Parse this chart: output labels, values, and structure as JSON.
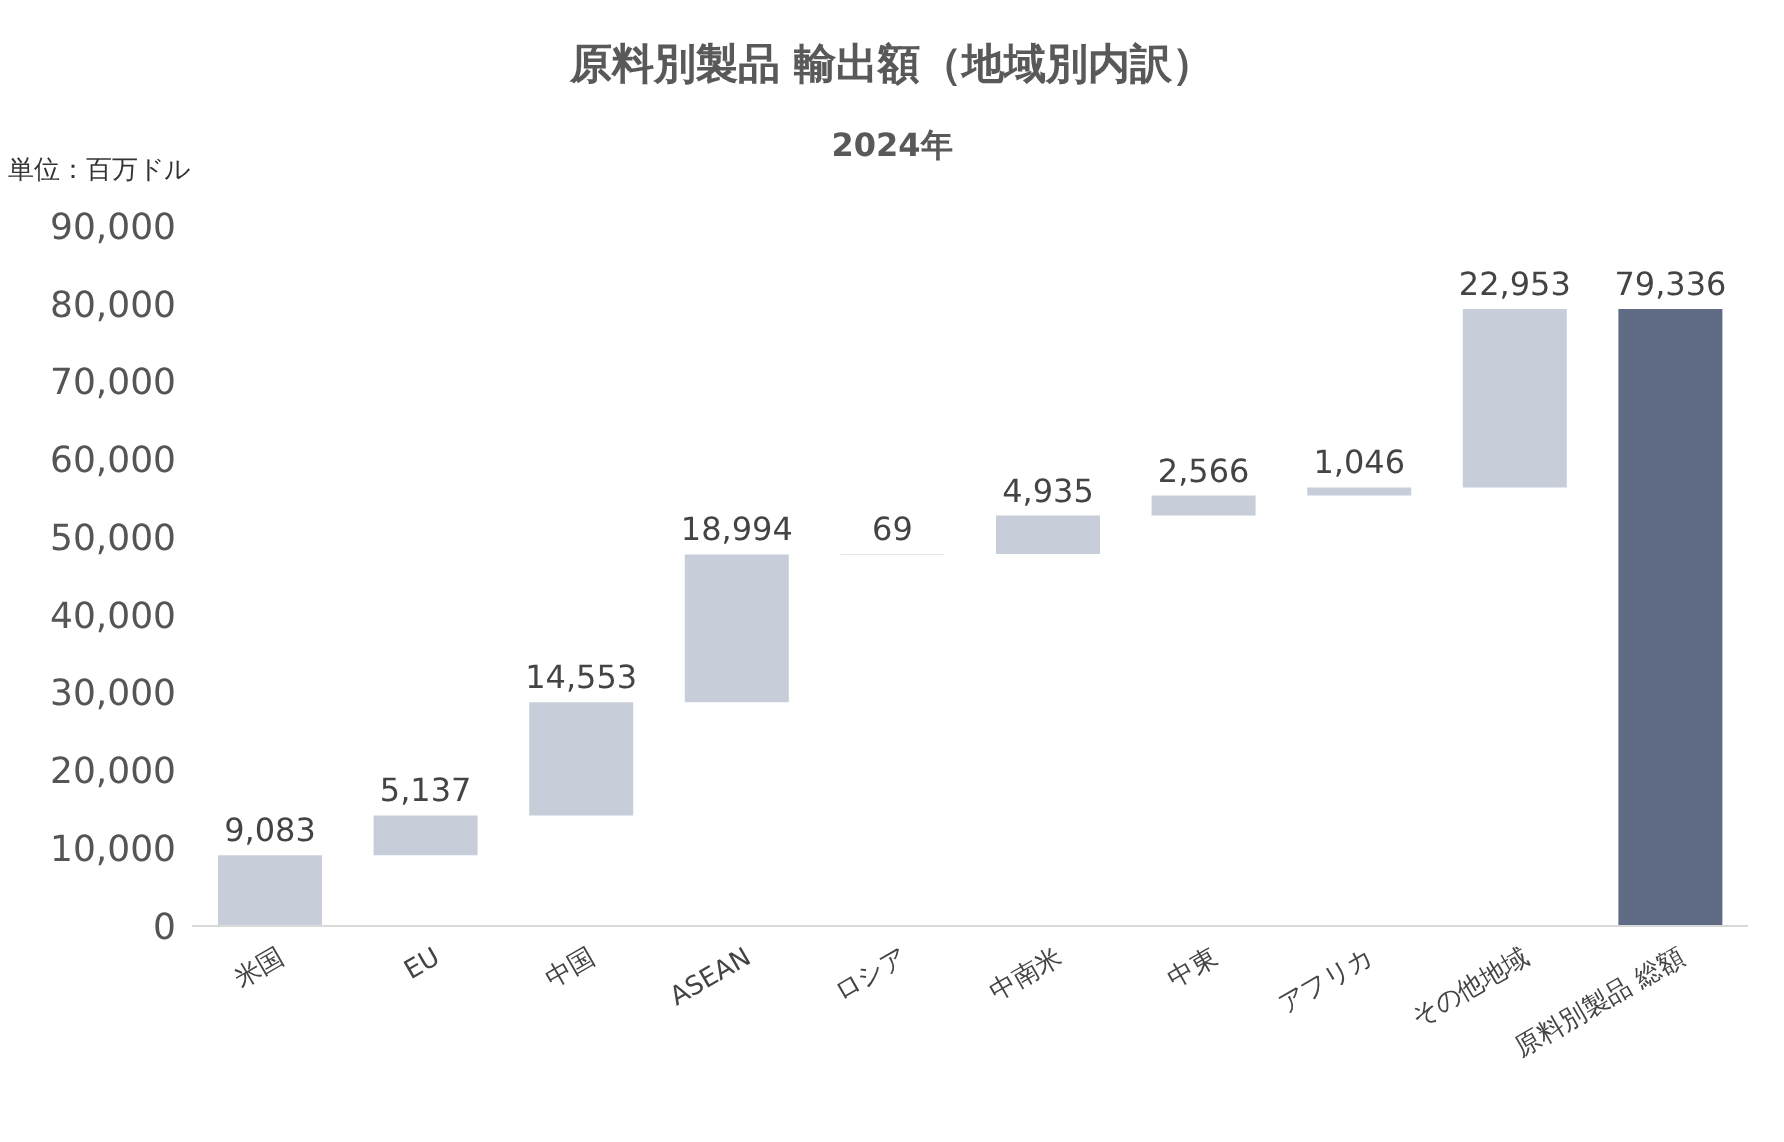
{
  "chart_data": {
    "type": "bar",
    "title": "原料別製品 輸出額（地域別内訳）",
    "subtitle": "2024年",
    "annotations": [
      "単位：百万ドル"
    ],
    "categories": [
      "米国",
      "EU",
      "中国",
      "ASEAN",
      "ロシア",
      "中南米",
      "中東",
      "アフリカ",
      "その他地域",
      "原料別製品 総額"
    ],
    "values": [
      9083,
      5137,
      14553,
      18994,
      69,
      4935,
      2566,
      1046,
      22953,
      79336
    ],
    "base": [
      0,
      9083,
      14220,
      28773,
      47767,
      47836,
      52771,
      55337,
      56383,
      0
    ],
    "colors": [
      "#c8ced9",
      "#c8ced9",
      "#c8ced9",
      "#c8ced9",
      "#c8ced9",
      "#c8ced9",
      "#c8ced9",
      "#c8ced9",
      "#c8ced9",
      "#5f6b85"
    ],
    "value_labels": [
      "9,083",
      "5,137",
      "14,553",
      "18,994",
      "69",
      "4,935",
      "2,566",
      "1,046",
      "22,953",
      "79,336"
    ],
    "ylim": [
      0,
      90000
    ],
    "yticks": [
      {
        "value": 0,
        "label": "0"
      },
      {
        "value": 10000,
        "label": "10,000"
      },
      {
        "value": 20000,
        "label": "20,000"
      },
      {
        "value": 30000,
        "label": "30,000"
      },
      {
        "value": 40000,
        "label": "40,000"
      },
      {
        "value": 50000,
        "label": "50,000"
      },
      {
        "value": 60000,
        "label": "60,000"
      },
      {
        "value": 70000,
        "label": "70,000"
      },
      {
        "value": 80000,
        "label": "80,000"
      },
      {
        "value": 90000,
        "label": "90,000"
      }
    ],
    "grid": false,
    "legend": false
  }
}
